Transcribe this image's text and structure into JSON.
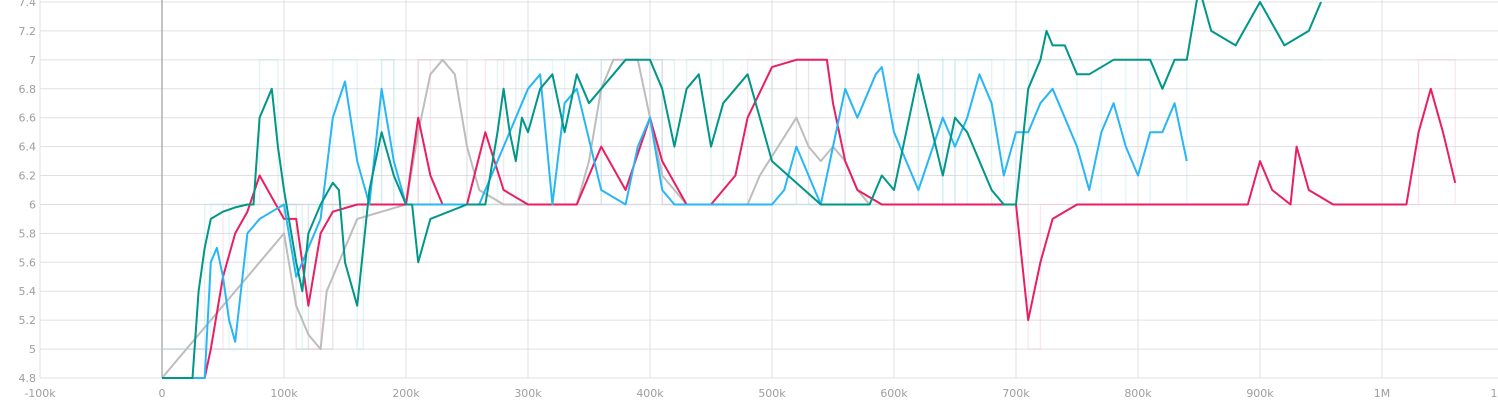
{
  "chart_data": {
    "type": "line",
    "grid": true,
    "legend": "none",
    "xlim": [
      -100000,
      1100000
    ],
    "ylim": [
      4.8,
      7.4
    ],
    "x_ticks": [
      {
        "value": -100000,
        "label": "-100k"
      },
      {
        "value": 0,
        "label": "0"
      },
      {
        "value": 100000,
        "label": "100k"
      },
      {
        "value": 200000,
        "label": "200k"
      },
      {
        "value": 300000,
        "label": "300k"
      },
      {
        "value": 400000,
        "label": "400k"
      },
      {
        "value": 500000,
        "label": "500k"
      },
      {
        "value": 600000,
        "label": "600k"
      },
      {
        "value": 700000,
        "label": "700k"
      },
      {
        "value": 800000,
        "label": "800k"
      },
      {
        "value": 900000,
        "label": "900k"
      },
      {
        "value": 1000000,
        "label": "1M"
      },
      {
        "value": 1100000,
        "label": "1.1M"
      }
    ],
    "y_ticks": [
      {
        "value": 4.8,
        "label": "4.8"
      },
      {
        "value": 5.0,
        "label": "5"
      },
      {
        "value": 5.2,
        "label": "5.2"
      },
      {
        "value": 5.4,
        "label": "5.4"
      },
      {
        "value": 5.6,
        "label": "5.6"
      },
      {
        "value": 5.8,
        "label": "5.8"
      },
      {
        "value": 6.0,
        "label": "6"
      },
      {
        "value": 6.2,
        "label": "6.2"
      },
      {
        "value": 6.4,
        "label": "6.4"
      },
      {
        "value": 6.6,
        "label": "6.6"
      },
      {
        "value": 6.8,
        "label": "6.8"
      },
      {
        "value": 7.0,
        "label": "7"
      },
      {
        "value": 7.2,
        "label": "7.2"
      },
      {
        "value": 7.4,
        "label": "7.4"
      }
    ],
    "series": [
      {
        "color": "#bdbdbd",
        "raw_color": "#bdbdbd",
        "x": [
          0,
          100000,
          110000,
          120000,
          130000,
          135000,
          140000,
          160000,
          200000,
          210000,
          220000,
          230000,
          240000,
          250000,
          260000,
          280000,
          300000,
          340000,
          350000,
          360000,
          370000,
          380000,
          390000,
          400000,
          410000,
          430000,
          480000,
          490000,
          520000,
          530000,
          540000,
          550000,
          560000,
          570000,
          580000
        ],
        "y": [
          4.8,
          5.8,
          5.3,
          5.1,
          5.0,
          5.4,
          5.5,
          5.9,
          6.0,
          6.5,
          6.9,
          7.0,
          6.9,
          6.4,
          6.1,
          6.0,
          6.0,
          6.0,
          6.3,
          6.8,
          7.0,
          7.0,
          7.0,
          6.6,
          6.2,
          6.0,
          6.0,
          6.2,
          6.6,
          6.4,
          6.3,
          6.4,
          6.3,
          6.1,
          6.0
        ]
      },
      {
        "color": "#e91e63",
        "raw_color": "#f8bbd0",
        "x": [
          0,
          35000,
          40000,
          50000,
          60000,
          70000,
          80000,
          90000,
          100000,
          110000,
          120000,
          130000,
          140000,
          160000,
          200000,
          210000,
          220000,
          230000,
          250000,
          265000,
          280000,
          300000,
          340000,
          360000,
          380000,
          400000,
          410000,
          430000,
          450000,
          470000,
          480000,
          500000,
          520000,
          545000,
          550000,
          560000,
          570000,
          590000,
          600000,
          620000,
          650000,
          700000,
          705000,
          710000,
          720000,
          730000,
          750000,
          800000,
          890000,
          900000,
          910000,
          925000,
          930000,
          940000,
          960000,
          1000000,
          1020000,
          1030000,
          1040000,
          1050000,
          1060000
        ],
        "y": [
          4.8,
          4.8,
          5.0,
          5.5,
          5.8,
          5.95,
          6.2,
          6.05,
          5.9,
          5.9,
          5.3,
          5.8,
          5.95,
          6.0,
          6.0,
          6.6,
          6.2,
          6.0,
          6.0,
          6.5,
          6.1,
          6.0,
          6.0,
          6.4,
          6.1,
          6.6,
          6.3,
          6.0,
          6.0,
          6.2,
          6.6,
          6.95,
          7.0,
          7.0,
          6.7,
          6.3,
          6.1,
          6.0,
          6.0,
          6.0,
          6.0,
          6.0,
          5.6,
          5.2,
          5.6,
          5.9,
          6.0,
          6.0,
          6.0,
          6.3,
          6.1,
          6.0,
          6.4,
          6.1,
          6.0,
          6.0,
          6.0,
          6.5,
          6.8,
          6.5,
          6.15
        ]
      },
      {
        "color": "#29b6f6",
        "raw_color": "#b3e5fc",
        "x": [
          0,
          35000,
          40000,
          45000,
          50000,
          55000,
          60000,
          70000,
          80000,
          90000,
          100000,
          110000,
          120000,
          130000,
          140000,
          150000,
          160000,
          170000,
          180000,
          190000,
          200000,
          260000,
          280000,
          300000,
          310000,
          320000,
          330000,
          340000,
          360000,
          380000,
          390000,
          400000,
          410000,
          420000,
          440000,
          460000,
          500000,
          510000,
          520000,
          540000,
          560000,
          570000,
          580000,
          585000,
          590000,
          600000,
          620000,
          640000,
          650000,
          660000,
          670000,
          680000,
          690000,
          700000,
          710000,
          720000,
          730000,
          740000,
          750000,
          760000,
          770000,
          780000,
          790000,
          800000,
          810000,
          820000,
          830000,
          840000
        ],
        "y": [
          4.8,
          4.8,
          5.6,
          5.7,
          5.5,
          5.2,
          5.05,
          5.8,
          5.9,
          5.95,
          6.0,
          5.5,
          5.7,
          5.9,
          6.6,
          6.85,
          6.3,
          6.0,
          6.8,
          6.3,
          6.0,
          6.0,
          6.4,
          6.8,
          6.9,
          6.0,
          6.7,
          6.8,
          6.1,
          6.0,
          6.4,
          6.6,
          6.1,
          6.0,
          6.0,
          6.0,
          6.0,
          6.1,
          6.4,
          6.0,
          6.8,
          6.6,
          6.8,
          6.9,
          6.95,
          6.5,
          6.1,
          6.6,
          6.4,
          6.6,
          6.9,
          6.7,
          6.2,
          6.5,
          6.5,
          6.7,
          6.8,
          6.6,
          6.4,
          6.1,
          6.5,
          6.7,
          6.4,
          6.2,
          6.5,
          6.5,
          6.7,
          6.3
        ]
      },
      {
        "color": "#009688",
        "raw_color": "#b2dfdb",
        "x": [
          0,
          25000,
          30000,
          35000,
          40000,
          50000,
          60000,
          70000,
          75000,
          80000,
          90000,
          95000,
          100000,
          110000,
          115000,
          120000,
          130000,
          140000,
          145000,
          150000,
          160000,
          165000,
          170000,
          180000,
          190000,
          200000,
          205000,
          210000,
          220000,
          250000,
          265000,
          275000,
          280000,
          285000,
          290000,
          295000,
          300000,
          310000,
          320000,
          330000,
          340000,
          350000,
          380000,
          395000,
          400000,
          410000,
          420000,
          430000,
          440000,
          450000,
          460000,
          480000,
          490000,
          500000,
          540000,
          580000,
          590000,
          600000,
          620000,
          640000,
          650000,
          660000,
          680000,
          690000,
          700000,
          710000,
          720000,
          725000,
          730000,
          740000,
          750000,
          760000,
          780000,
          800000,
          810000,
          820000,
          830000,
          840000,
          850000,
          860000,
          880000,
          900000,
          920000,
          940000,
          950000
        ],
        "y": [
          4.8,
          4.8,
          5.4,
          5.7,
          5.9,
          5.95,
          5.98,
          6.0,
          6.0,
          6.6,
          6.8,
          6.4,
          6.1,
          5.6,
          5.4,
          5.8,
          6.0,
          6.15,
          6.1,
          5.6,
          5.3,
          5.7,
          6.1,
          6.5,
          6.2,
          6.0,
          6.0,
          5.6,
          5.9,
          6.0,
          6.0,
          6.5,
          6.8,
          6.5,
          6.3,
          6.6,
          6.5,
          6.8,
          6.9,
          6.5,
          6.9,
          6.7,
          7.0,
          7.0,
          7.0,
          6.8,
          6.4,
          6.8,
          6.9,
          6.4,
          6.7,
          6.9,
          6.6,
          6.3,
          6.0,
          6.0,
          6.2,
          6.1,
          6.9,
          6.2,
          6.6,
          6.5,
          6.1,
          6.0,
          6.0,
          6.8,
          7.0,
          7.2,
          7.1,
          7.1,
          6.9,
          6.9,
          7.0,
          7.0,
          7.0,
          6.8,
          7.0,
          7.0,
          7.5,
          7.2,
          7.1,
          7.4,
          7.1,
          7.2,
          7.4
        ]
      }
    ]
  }
}
